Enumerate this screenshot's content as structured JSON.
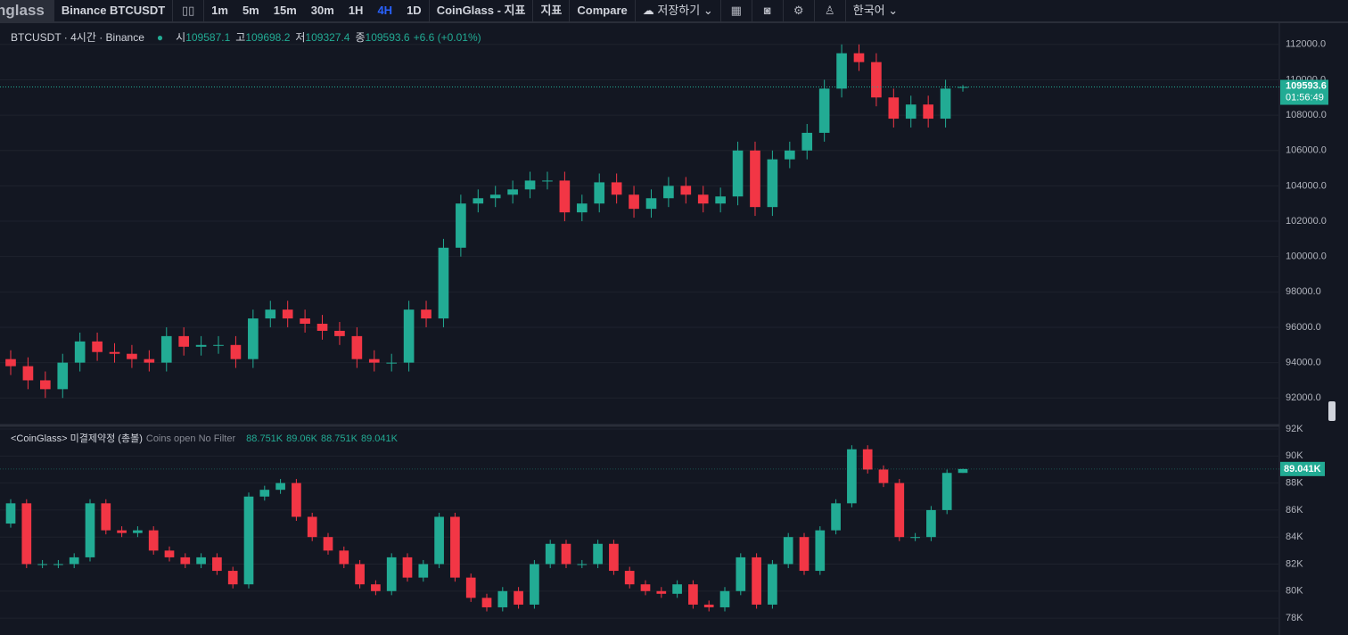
{
  "toolbar": {
    "logo": "nglass",
    "symbol": "Binance BTCUSDT",
    "intervals": [
      "1m",
      "5m",
      "15m",
      "30m",
      "1H",
      "4H",
      "1D"
    ],
    "active_interval_index": 5,
    "buttons": [
      "CoinGlass - 지표",
      "지표",
      "Compare",
      "저장하기",
      "한국어"
    ]
  },
  "chart_data": [
    {
      "type": "candlestick",
      "title": "BTCUSDT · 4시간 · Binance",
      "ohlc_names": [
        "시",
        "고",
        "저",
        "종"
      ],
      "change": "+6.6 (+0.01%)",
      "countdown": "01:56:49",
      "open": [
        94200,
        93800,
        93000,
        92500,
        94000,
        95200,
        94600,
        94500,
        94200,
        94000,
        95500,
        94900,
        95000,
        95000,
        94200,
        96500,
        97000,
        96500,
        96200,
        95800,
        95500,
        94200,
        94000,
        94000,
        97000,
        96500,
        100500,
        103000,
        103300,
        103500,
        103800,
        104300,
        104300,
        102500,
        103000,
        104200,
        103500,
        102700,
        103300,
        104000,
        103500,
        103000,
        103400,
        106000,
        102800,
        105500,
        106000,
        107000,
        109500,
        111500,
        111000,
        109000,
        107800,
        108600,
        107800,
        109587.1
      ],
      "high": [
        94700,
        94300,
        93500,
        94500,
        95700,
        95700,
        95100,
        95000,
        94700,
        96000,
        96000,
        95500,
        95500,
        95500,
        97000,
        97500,
        97500,
        97000,
        96700,
        96300,
        96000,
        94700,
        94500,
        97500,
        97500,
        101000,
        103500,
        103800,
        104000,
        104300,
        104800,
        104800,
        104800,
        103500,
        104700,
        104700,
        104000,
        103800,
        104500,
        104500,
        104000,
        103900,
        106500,
        106500,
        106000,
        106500,
        107500,
        110000,
        112000,
        112000,
        111500,
        109500,
        109100,
        109100,
        110000,
        109698.2
      ],
      "low": [
        93300,
        92500,
        92000,
        92000,
        93500,
        94100,
        94000,
        93700,
        93500,
        93500,
        94400,
        94400,
        94500,
        93700,
        93700,
        96000,
        96000,
        95700,
        95300,
        95000,
        93700,
        93500,
        93500,
        93500,
        96000,
        96000,
        100000,
        102500,
        102800,
        103000,
        103300,
        103800,
        102000,
        102000,
        102500,
        103000,
        102200,
        102200,
        102800,
        103000,
        102500,
        102500,
        102900,
        102300,
        102300,
        105000,
        105500,
        106500,
        109000,
        110500,
        108500,
        107300,
        107300,
        107300,
        107300,
        109327.4
      ],
      "close": [
        93800,
        93000,
        92500,
        94000,
        95200,
        94600,
        94500,
        94200,
        94000,
        95500,
        94900,
        95000,
        95000,
        94200,
        96500,
        97000,
        96500,
        96200,
        95800,
        95500,
        94200,
        94000,
        94000,
        97000,
        96500,
        100500,
        103000,
        103300,
        103500,
        103800,
        104300,
        104300,
        102500,
        103000,
        104200,
        103500,
        102700,
        103300,
        104000,
        103500,
        103000,
        103400,
        106000,
        102800,
        105500,
        106000,
        107000,
        109500,
        111500,
        111000,
        109000,
        107800,
        108600,
        107800,
        109500,
        109593.6
      ],
      "up_color": "#22ab94",
      "down_color": "#f23645",
      "grid": true,
      "ylim": [
        90500,
        113100
      ],
      "yticks": [
        {
          "value": 92000,
          "label": "92000.0"
        },
        {
          "value": 94000,
          "label": "94000.0"
        },
        {
          "value": 96000,
          "label": "96000.0"
        },
        {
          "value": 98000,
          "label": "98000.0"
        },
        {
          "value": 100000,
          "label": "100000.0"
        },
        {
          "value": 102000,
          "label": "102000.0"
        },
        {
          "value": 104000,
          "label": "104000.0"
        },
        {
          "value": 106000,
          "label": "106000.0"
        },
        {
          "value": 108000,
          "label": "108000.0"
        },
        {
          "value": 110000,
          "label": "110000.0"
        },
        {
          "value": 112000,
          "label": "112000.0"
        }
      ]
    },
    {
      "type": "candlestick",
      "title": "<CoinGlass> 미결제약정 (총볼)",
      "subtitle": "Coins open No Filter",
      "ohlc_labels": [
        "88.751K",
        "89.06K",
        "88.751K",
        "89.041K"
      ],
      "open": [
        85000,
        86500,
        82000,
        82000,
        82000,
        82500,
        86500,
        84500,
        84300,
        84500,
        83000,
        82500,
        82000,
        82500,
        81500,
        80500,
        87000,
        87500,
        88000,
        85500,
        84000,
        83000,
        82000,
        80500,
        80000,
        82500,
        81000,
        82000,
        85500,
        81000,
        79500,
        78800,
        80000,
        79000,
        82000,
        83500,
        82000,
        82000,
        83500,
        81500,
        80500,
        80000,
        79800,
        80500,
        79000,
        78800,
        80000,
        82500,
        79000,
        82000,
        84000,
        81500,
        84500,
        86500,
        90500,
        89000,
        88000,
        84000,
        84000,
        86000,
        88751
      ],
      "high": [
        86800,
        86800,
        82300,
        82300,
        82800,
        86800,
        86800,
        84800,
        84800,
        84800,
        83300,
        82800,
        82800,
        82800,
        81800,
        87300,
        87800,
        88300,
        88300,
        85800,
        84300,
        83300,
        82300,
        80800,
        82800,
        82800,
        82300,
        85800,
        85800,
        81300,
        79800,
        80300,
        80300,
        82300,
        83800,
        83800,
        82300,
        83800,
        83800,
        81800,
        80800,
        80300,
        80800,
        80800,
        79300,
        80300,
        82800,
        82800,
        82300,
        84300,
        84300,
        84800,
        86800,
        90800,
        90800,
        89300,
        88300,
        84300,
        86300,
        89000,
        89060
      ],
      "low": [
        84700,
        81700,
        81700,
        81700,
        81700,
        82200,
        84200,
        84000,
        84000,
        82700,
        82200,
        81700,
        81700,
        81200,
        80200,
        80200,
        86700,
        87200,
        85200,
        83700,
        82700,
        81700,
        80200,
        79700,
        79700,
        80700,
        80700,
        81700,
        80700,
        79200,
        78500,
        78500,
        78700,
        78700,
        81700,
        81700,
        81700,
        81700,
        81200,
        80200,
        79700,
        79500,
        79500,
        78700,
        78500,
        78500,
        79700,
        78700,
        78700,
        81700,
        81200,
        81200,
        84200,
        86200,
        88700,
        87700,
        83700,
        83700,
        83700,
        85700,
        88751
      ],
      "close": [
        86500,
        82000,
        82000,
        82000,
        82500,
        86500,
        84500,
        84300,
        84500,
        83000,
        82500,
        82000,
        82500,
        81500,
        80500,
        87000,
        87500,
        88000,
        85500,
        84000,
        83000,
        82000,
        80500,
        80000,
        82500,
        81000,
        82000,
        85500,
        81000,
        79500,
        78800,
        80000,
        79000,
        82000,
        83500,
        82000,
        82000,
        83500,
        81500,
        80500,
        80000,
        79800,
        80500,
        79000,
        78800,
        80000,
        82500,
        79000,
        82000,
        84000,
        81500,
        84500,
        86500,
        90500,
        89000,
        88000,
        84000,
        84000,
        86000,
        88751,
        89041
      ],
      "up_color": "#22ab94",
      "down_color": "#f23645",
      "grid": true,
      "ylim": [
        76750,
        92200
      ],
      "yticks": [
        {
          "value": 78000,
          "label": "78K"
        },
        {
          "value": 80000,
          "label": "80K"
        },
        {
          "value": 82000,
          "label": "82K"
        },
        {
          "value": 84000,
          "label": "84K"
        },
        {
          "value": 86000,
          "label": "86K"
        },
        {
          "value": 88000,
          "label": "88K"
        },
        {
          "value": 90000,
          "label": "90K"
        },
        {
          "value": 92000,
          "label": "92K"
        }
      ]
    }
  ]
}
